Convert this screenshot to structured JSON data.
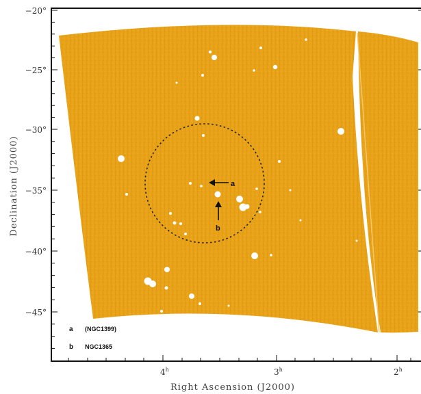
{
  "axes": {
    "xlabel": "Right Ascension (J2000)",
    "ylabel": "Declination (J2000)",
    "x_ticks": [
      {
        "label": "4",
        "sup": "h",
        "value": 4
      },
      {
        "label": "3",
        "sup": "h",
        "value": 3
      },
      {
        "label": "2",
        "sup": "h",
        "value": 2
      }
    ],
    "y_ticks": [
      {
        "label": "−20°",
        "value": -20
      },
      {
        "label": "−25°",
        "value": -25
      },
      {
        "label": "−30°",
        "value": -30
      },
      {
        "label": "−35°",
        "value": -35
      },
      {
        "label": "−40°",
        "value": -40
      },
      {
        "label": "−45°",
        "value": -45
      }
    ]
  },
  "map": {
    "fill_color": "#e8a318",
    "source_color": "#ffffff",
    "circle_style": "dotted"
  },
  "annotations": {
    "a": {
      "letter": "a"
    },
    "b": {
      "letter": "b"
    }
  },
  "legend": [
    {
      "letter": "a",
      "text": "(NGC1399)"
    },
    {
      "letter": "b",
      "text": "NGC1365"
    }
  ]
}
